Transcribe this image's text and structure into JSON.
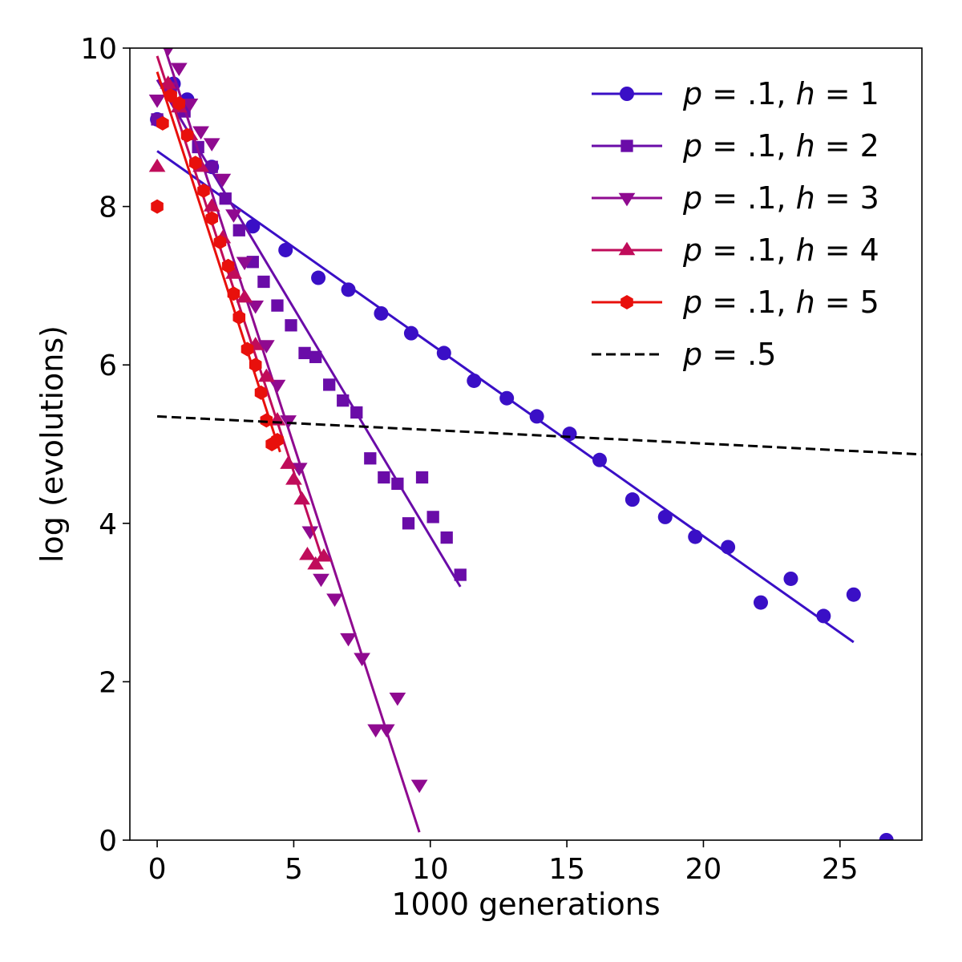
{
  "chart_data": {
    "type": "scatter",
    "xlabel": "1000 generations",
    "ylabel": "log (evolutions)",
    "xlim": [
      -1,
      28
    ],
    "ylim": [
      0,
      10
    ],
    "xticks": [
      0,
      5,
      10,
      15,
      20,
      25
    ],
    "yticks": [
      0,
      2,
      4,
      6,
      8,
      10
    ],
    "grid": false,
    "legend_position": "top-right",
    "series": [
      {
        "name": "p = .1, h = 1",
        "legend": {
          "p": ".1",
          "h": "1"
        },
        "marker": "circle",
        "color": "#3a0fc6",
        "points": [
          [
            0,
            9.1
          ],
          [
            0.6,
            9.55
          ],
          [
            1.1,
            9.35
          ],
          [
            2.0,
            8.5
          ],
          [
            3.5,
            7.75
          ],
          [
            4.7,
            7.45
          ],
          [
            5.9,
            7.1
          ],
          [
            7.0,
            6.95
          ],
          [
            8.2,
            6.65
          ],
          [
            9.3,
            6.4
          ],
          [
            10.5,
            6.15
          ],
          [
            11.6,
            5.8
          ],
          [
            12.8,
            5.58
          ],
          [
            13.9,
            5.35
          ],
          [
            15.1,
            5.13
          ],
          [
            16.2,
            4.8
          ],
          [
            17.4,
            4.3
          ],
          [
            18.6,
            4.08
          ],
          [
            19.7,
            3.83
          ],
          [
            20.9,
            3.7
          ],
          [
            22.1,
            3.0
          ],
          [
            23.2,
            3.3
          ],
          [
            24.4,
            2.83
          ],
          [
            25.5,
            3.1
          ],
          [
            26.7,
            0.0
          ]
        ],
        "fit": [
          [
            0,
            8.7
          ],
          [
            25.5,
            2.5
          ]
        ]
      },
      {
        "name": "p = .1, h = 2",
        "legend": {
          "p": ".1",
          "h": "2"
        },
        "marker": "square",
        "color": "#6a0ca8",
        "points": [
          [
            0,
            9.1
          ],
          [
            0.5,
            9.5
          ],
          [
            1.0,
            9.2
          ],
          [
            1.5,
            8.75
          ],
          [
            2.0,
            8.5
          ],
          [
            2.5,
            8.1
          ],
          [
            3.0,
            7.7
          ],
          [
            3.5,
            7.3
          ],
          [
            3.9,
            7.05
          ],
          [
            4.4,
            6.75
          ],
          [
            4.9,
            6.5
          ],
          [
            5.4,
            6.15
          ],
          [
            5.8,
            6.1
          ],
          [
            6.3,
            5.75
          ],
          [
            6.8,
            5.55
          ],
          [
            7.3,
            5.4
          ],
          [
            7.8,
            4.82
          ],
          [
            8.3,
            4.58
          ],
          [
            8.8,
            4.5
          ],
          [
            9.2,
            4.0
          ],
          [
            9.7,
            4.58
          ],
          [
            10.1,
            4.08
          ],
          [
            10.6,
            3.82
          ],
          [
            11.1,
            3.35
          ]
        ],
        "fit": [
          [
            0,
            9.6
          ],
          [
            11.1,
            3.2
          ]
        ]
      },
      {
        "name": "p = .1, h = 3",
        "legend": {
          "p": ".1",
          "h": "3"
        },
        "marker": "triangle-down",
        "color": "#8f0a90",
        "points": [
          [
            0,
            9.35
          ],
          [
            0.4,
            9.5
          ],
          [
            0.8,
            9.75
          ],
          [
            1.2,
            9.3
          ],
          [
            1.6,
            8.95
          ],
          [
            2.0,
            8.8
          ],
          [
            2.4,
            8.35
          ],
          [
            2.8,
            7.9
          ],
          [
            3.2,
            7.3
          ],
          [
            3.6,
            6.75
          ],
          [
            4.0,
            6.25
          ],
          [
            4.4,
            5.75
          ],
          [
            4.8,
            5.3
          ],
          [
            5.2,
            4.7
          ],
          [
            5.6,
            3.9
          ],
          [
            6.0,
            3.3
          ],
          [
            6.5,
            3.05
          ],
          [
            7.0,
            2.55
          ],
          [
            7.5,
            2.3
          ],
          [
            8.0,
            1.4
          ],
          [
            8.4,
            1.4
          ],
          [
            8.8,
            1.8
          ],
          [
            9.6,
            0.7
          ],
          [
            0.4,
            10.0
          ]
        ],
        "fit": [
          [
            0,
            10.3
          ],
          [
            9.6,
            0.1
          ]
        ]
      },
      {
        "name": "p = .1, h = 4",
        "legend": {
          "p": ".1",
          "h": "4"
        },
        "marker": "triangle-up",
        "color": "#c00c5a",
        "points": [
          [
            0,
            8.5
          ],
          [
            0.4,
            9.55
          ],
          [
            0.8,
            9.25
          ],
          [
            1.2,
            8.9
          ],
          [
            1.6,
            8.5
          ],
          [
            2.0,
            8.0
          ],
          [
            2.4,
            7.6
          ],
          [
            2.8,
            7.15
          ],
          [
            3.2,
            6.85
          ],
          [
            3.6,
            6.25
          ],
          [
            4.0,
            5.85
          ],
          [
            4.4,
            5.3
          ],
          [
            4.8,
            4.75
          ],
          [
            5.0,
            4.55
          ],
          [
            5.3,
            4.3
          ],
          [
            5.5,
            3.6
          ],
          [
            5.8,
            3.48
          ],
          [
            6.1,
            3.58
          ]
        ],
        "fit": [
          [
            0,
            9.9
          ],
          [
            6.0,
            3.6
          ]
        ]
      },
      {
        "name": "p = .1, h = 5",
        "legend": {
          "p": ".1",
          "h": "5"
        },
        "marker": "hexagon",
        "color": "#e8100c",
        "points": [
          [
            0,
            8.0
          ],
          [
            0.2,
            9.05
          ],
          [
            0.5,
            9.4
          ],
          [
            0.8,
            9.3
          ],
          [
            1.1,
            8.9
          ],
          [
            1.4,
            8.55
          ],
          [
            1.7,
            8.2
          ],
          [
            2.0,
            7.85
          ],
          [
            2.3,
            7.55
          ],
          [
            2.6,
            7.25
          ],
          [
            2.8,
            6.9
          ],
          [
            3.0,
            6.6
          ],
          [
            3.3,
            6.2
          ],
          [
            3.6,
            6.0
          ],
          [
            3.8,
            5.65
          ],
          [
            4.0,
            5.3
          ],
          [
            4.2,
            5.0
          ],
          [
            4.4,
            5.05
          ]
        ],
        "fit": [
          [
            0,
            9.7
          ],
          [
            4.5,
            4.9
          ]
        ]
      },
      {
        "name": "p = .5",
        "legend": {
          "p": ".5",
          "h": ""
        },
        "marker": "none",
        "line": "dashed",
        "color": "#000000",
        "points": [],
        "fit": [
          [
            0,
            5.35
          ],
          [
            28,
            4.87
          ]
        ]
      }
    ]
  }
}
